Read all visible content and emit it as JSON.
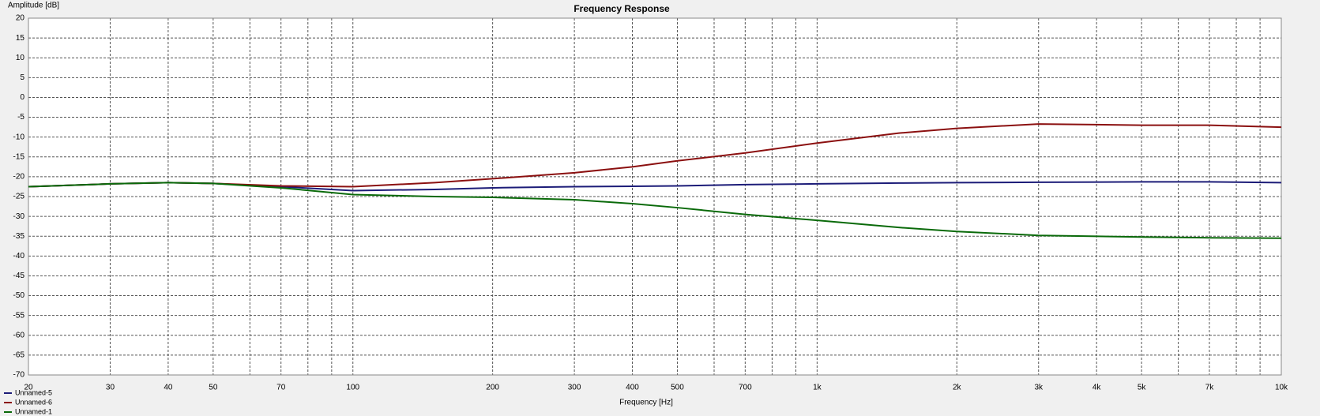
{
  "chart_data": {
    "type": "line",
    "title": "Frequency Response",
    "x_label": "Frequency [Hz]",
    "y_label": "Amplitude [dB]",
    "x_scale": "log",
    "grid": true,
    "xlim": [
      20,
      10000
    ],
    "ylim": [
      -70,
      20
    ],
    "yticks": [
      -70,
      -65,
      -60,
      -55,
      -50,
      -45,
      -40,
      -35,
      -30,
      -25,
      -20,
      -15,
      -10,
      -5,
      0,
      5,
      10,
      15,
      20
    ],
    "xticks": [
      20,
      30,
      40,
      50,
      70,
      100,
      200,
      300,
      400,
      500,
      700,
      {
        "value": 1000,
        "label": "1k"
      },
      {
        "value": 2000,
        "label": "2k"
      },
      {
        "value": 3000,
        "label": "3k"
      },
      {
        "value": 4000,
        "label": "4k"
      },
      {
        "value": 5000,
        "label": "5k"
      },
      {
        "value": 7000,
        "label": "7k"
      },
      {
        "value": 10000,
        "label": "10k"
      }
    ],
    "xminor": [
      60,
      80,
      90,
      600,
      800,
      900,
      6000,
      8000,
      9000
    ],
    "x": [
      20,
      30,
      40,
      50,
      70,
      100,
      150,
      200,
      300,
      400,
      500,
      700,
      1000,
      1500,
      2000,
      3000,
      5000,
      7000,
      10000
    ],
    "series": [
      {
        "name": "Unnamed-5",
        "color": "#1c1c78",
        "values": [
          -22.5,
          -21.8,
          -21.5,
          -21.7,
          -22.5,
          -23.5,
          -23.2,
          -22.8,
          -22.5,
          -22.4,
          -22.3,
          -22,
          -21.8,
          -21.6,
          -21.5,
          -21.4,
          -21.3,
          -21.3,
          -21.5
        ]
      },
      {
        "name": "Unnamed-6",
        "color": "#8b1010",
        "values": [
          -22.5,
          -21.8,
          -21.5,
          -21.7,
          -22.3,
          -22.5,
          -21.5,
          -20.5,
          -19,
          -17.5,
          -16,
          -14,
          -11.5,
          -9,
          -7.8,
          -6.7,
          -7,
          -7,
          -7.5
        ]
      },
      {
        "name": "Unnamed-1",
        "color": "#0a6a0a",
        "values": [
          -22.5,
          -21.8,
          -21.5,
          -21.7,
          -22.8,
          -24.5,
          -25,
          -25.2,
          -25.8,
          -26.8,
          -27.8,
          -29.5,
          -31,
          -32.8,
          -33.8,
          -34.8,
          -35.2,
          -35.4,
          -35.5
        ]
      }
    ]
  }
}
